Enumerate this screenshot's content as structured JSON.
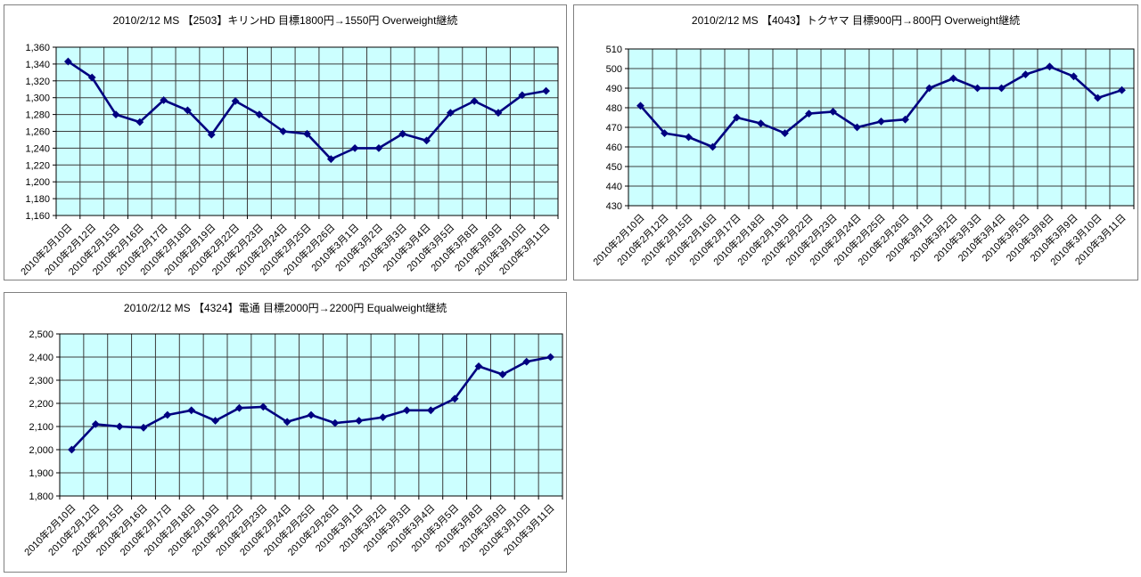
{
  "page": {
    "background": "#ffffff",
    "description": "Three stock price line charts in bordered panels"
  },
  "colors": {
    "plot_bg": "#ccffff",
    "grid": "#3c3c3c",
    "axis": "#000000",
    "series": "#000080",
    "panel_border": "#808080",
    "text": "#000000"
  },
  "chart_data": [
    {
      "type": "line",
      "title": "2010/2/12 MS 【2503】キリンHD 目標1800円→1550円 Overweight継続",
      "ylim": [
        1160,
        1360
      ],
      "ytick_step": 20,
      "thousands_comma": true,
      "grid": true,
      "legend": false,
      "x_labels_rotated": 45,
      "marker": "diamond",
      "categories": [
        "2010年2月10日",
        "2010年2月12日",
        "2010年2月15日",
        "2010年2月16日",
        "2010年2月17日",
        "2010年2月18日",
        "2010年2月19日",
        "2010年2月22日",
        "2010年2月23日",
        "2010年2月24日",
        "2010年2月25日",
        "2010年2月26日",
        "2010年3月1日",
        "2010年3月2日",
        "2010年3月3日",
        "2010年3月4日",
        "2010年3月5日",
        "2010年3月8日",
        "2010年3月9日",
        "2010年3月10日",
        "2010年3月11日"
      ],
      "values": [
        1343,
        1324,
        1280,
        1271,
        1297,
        1285,
        1256,
        1296,
        1280,
        1260,
        1257,
        1227,
        1240,
        1240,
        1257,
        1249,
        1282,
        1296,
        1282,
        1303,
        1308
      ]
    },
    {
      "type": "line",
      "title": "2010/2/12 MS 【4043】トクヤマ 目標900円→800円 Overweight継続",
      "ylim": [
        430,
        510
      ],
      "ytick_step": 10,
      "thousands_comma": false,
      "grid": true,
      "legend": false,
      "x_labels_rotated": 45,
      "marker": "diamond",
      "categories": [
        "2010年2月10日",
        "2010年2月12日",
        "2010年2月15日",
        "2010年2月16日",
        "2010年2月17日",
        "2010年2月18日",
        "2010年2月19日",
        "2010年2月22日",
        "2010年2月23日",
        "2010年2月24日",
        "2010年2月25日",
        "2010年2月26日",
        "2010年3月1日",
        "2010年3月2日",
        "2010年3月3日",
        "2010年3月4日",
        "2010年3月5日",
        "2010年3月8日",
        "2010年3月9日",
        "2010年3月10日",
        "2010年3月11日"
      ],
      "values": [
        481,
        467,
        465,
        460,
        475,
        472,
        467,
        477,
        478,
        470,
        473,
        474,
        490,
        495,
        490,
        490,
        497,
        501,
        496,
        485,
        489
      ]
    },
    {
      "type": "line",
      "title": "2010/2/12 MS 【4324】電通 目標2000円→2200円 Equalweight継続",
      "ylim": [
        1800,
        2500
      ],
      "ytick_step": 100,
      "thousands_comma": true,
      "grid": true,
      "legend": false,
      "x_labels_rotated": 45,
      "marker": "diamond",
      "categories": [
        "2010年2月10日",
        "2010年2月12日",
        "2010年2月15日",
        "2010年2月16日",
        "2010年2月17日",
        "2010年2月18日",
        "2010年2月19日",
        "2010年2月22日",
        "2010年2月23日",
        "2010年2月24日",
        "2010年2月25日",
        "2010年2月26日",
        "2010年3月1日",
        "2010年3月2日",
        "2010年3月3日",
        "2010年3月4日",
        "2010年3月5日",
        "2010年3月8日",
        "2010年3月9日",
        "2010年3月10日",
        "2010年3月11日"
      ],
      "values": [
        2000,
        2110,
        2100,
        2095,
        2150,
        2170,
        2125,
        2180,
        2185,
        2120,
        2150,
        2115,
        2125,
        2140,
        2170,
        2170,
        2220,
        2360,
        2325,
        2380,
        2400
      ]
    }
  ]
}
